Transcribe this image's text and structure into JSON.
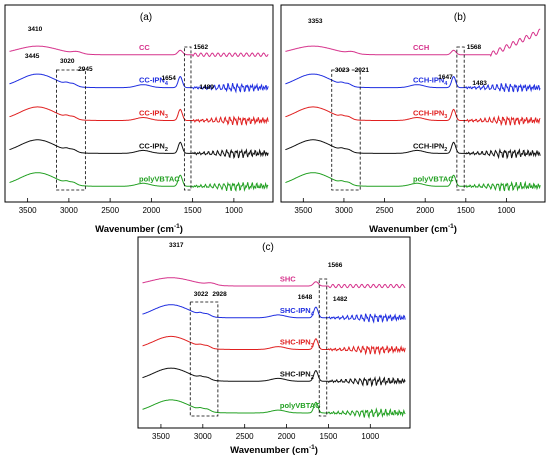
{
  "figure": {
    "panels_count": 3
  },
  "chart_data": [
    {
      "type": "line",
      "panel_label": "(a)",
      "xlabel": "Wavenumber (cm⁻¹)",
      "xlabel_main": "Wavenumber (cm",
      "xlabel_sup": "-1",
      "xlabel_tail": ")",
      "xlim": [
        3750,
        550
      ],
      "x_ticks": [
        3500,
        3000,
        2500,
        2000,
        1500,
        1000
      ],
      "x_tick_labels": [
        "3500",
        "3000",
        "2500",
        "2000",
        "1500",
        "1000"
      ],
      "ylabel": "",
      "grid": false,
      "legend": "inline labels on curves",
      "series": [
        {
          "name": "CC",
          "label_main": "CC",
          "label_sub": "",
          "color": "#d6338c",
          "offset": 0.0
        },
        {
          "name": "CC-IPN4",
          "label_main": "CC-IPN",
          "label_sub": "4",
          "color": "#1f2ee0",
          "offset": 1.0
        },
        {
          "name": "CC-IPN3",
          "label_main": "CC-IPN",
          "label_sub": "3",
          "color": "#e02020",
          "offset": 2.0
        },
        {
          "name": "CC-IPN2",
          "label_main": "CC-IPN",
          "label_sub": "2",
          "color": "#111111",
          "offset": 3.0
        },
        {
          "name": "polyVBTAC",
          "label_main": "polyVBTAC",
          "label_sub": "",
          "color": "#22a022",
          "offset": 4.0
        }
      ],
      "annotations": [
        "3410",
        "3445",
        "3020",
        "2945",
        "1654",
        "1562",
        "1489"
      ],
      "dashed_boxes": [
        {
          "x_range": [
            3150,
            2800
          ]
        },
        {
          "x_range": [
            1600,
            1520
          ]
        }
      ]
    },
    {
      "type": "line",
      "panel_label": "(b)",
      "xlabel": "Wavenumber (cm⁻¹)",
      "xlabel_main": "Wavenumber (cm",
      "xlabel_sup": "-1",
      "xlabel_tail": ")",
      "xlim": [
        3750,
        550
      ],
      "x_ticks": [
        3500,
        3000,
        2500,
        2000,
        1500,
        1000
      ],
      "x_tick_labels": [
        "3500",
        "3000",
        "2500",
        "2000",
        "1500",
        "1000"
      ],
      "ylabel": "",
      "grid": false,
      "legend": "inline labels on curves",
      "series": [
        {
          "name": "CCH",
          "label_main": "CCH",
          "label_sub": "",
          "color": "#d6338c",
          "offset": 0.0
        },
        {
          "name": "CCH-IPN4",
          "label_main": "CCH-IPN",
          "label_sub": "4",
          "color": "#1f2ee0",
          "offset": 1.0
        },
        {
          "name": "CCH-IPN3",
          "label_main": "CCH-IPN",
          "label_sub": "3",
          "color": "#e02020",
          "offset": 2.0
        },
        {
          "name": "CCH-IPN2",
          "label_main": "CCH-IPN",
          "label_sub": "2",
          "color": "#111111",
          "offset": 3.0
        },
        {
          "name": "polyVBTAC",
          "label_main": "polyVBTAC",
          "label_sub": "",
          "color": "#22a022",
          "offset": 4.0
        }
      ],
      "annotations": [
        "3353",
        "3023",
        "2921",
        "1647",
        "1568",
        "1483"
      ],
      "dashed_boxes": [
        {
          "x_range": [
            3150,
            2800
          ]
        },
        {
          "x_range": [
            1610,
            1520
          ]
        }
      ]
    },
    {
      "type": "line",
      "panel_label": "(c)",
      "xlabel": "Wavenumber (cm⁻¹)",
      "xlabel_main": "Wavenumber (cm",
      "xlabel_sup": "-1",
      "xlabel_tail": ")",
      "xlim": [
        3750,
        550
      ],
      "x_ticks": [
        3500,
        3000,
        2500,
        2000,
        1500,
        1000
      ],
      "x_tick_labels": [
        "3500",
        "3000",
        "2500",
        "2000",
        "1500",
        "1000"
      ],
      "ylabel": "",
      "grid": false,
      "legend": "inline labels on curves",
      "series": [
        {
          "name": "SHC",
          "label_main": "SHC",
          "label_sub": "",
          "color": "#d6338c",
          "offset": 0.0
        },
        {
          "name": "SHC-IPN4",
          "label_main": "SHC-IPN",
          "label_sub": "4",
          "color": "#1f2ee0",
          "offset": 1.0
        },
        {
          "name": "SHC-IPN3",
          "label_main": "SHC-IPN",
          "label_sub": "3",
          "color": "#e02020",
          "offset": 2.0
        },
        {
          "name": "SHC-IPN2",
          "label_main": "SHC-IPN",
          "label_sub": "2",
          "color": "#111111",
          "offset": 3.0
        },
        {
          "name": "polyVBTAC",
          "label_main": "polyVBTAC",
          "label_sub": "",
          "color": "#22a022",
          "offset": 4.0
        }
      ],
      "annotations": [
        "3317",
        "3022",
        "2928",
        "1648",
        "1566",
        "1482"
      ],
      "dashed_boxes": [
        {
          "x_range": [
            3150,
            2820
          ]
        },
        {
          "x_range": [
            1610,
            1520
          ]
        }
      ]
    }
  ]
}
